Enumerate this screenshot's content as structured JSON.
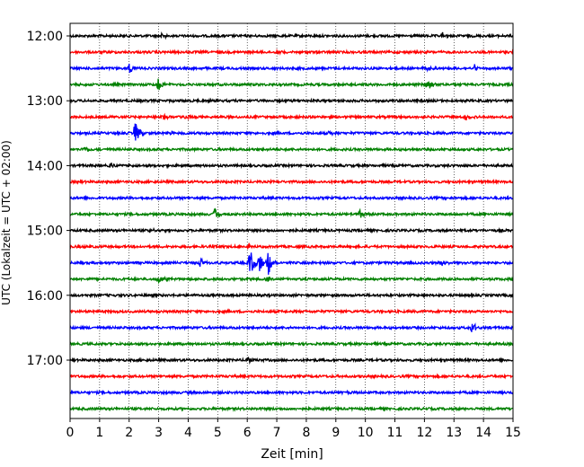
{
  "chart_data": {
    "type": "line",
    "title": "",
    "xlabel": "Zeit  [min]",
    "ylabel": "UTC (Lokalzeit = UTC + 02:00)",
    "xlim": [
      0,
      15
    ],
    "x_ticks": [
      0,
      1,
      2,
      3,
      4,
      5,
      6,
      7,
      8,
      9,
      10,
      11,
      12,
      13,
      14,
      15
    ],
    "y_tick_labels": [
      "12:00",
      "13:00",
      "14:00",
      "15:00",
      "16:00",
      "17:00"
    ],
    "grid": "x-dotted",
    "start_time": "12:00",
    "row_interval_min": 15,
    "color_cycle": [
      "#000000",
      "#ff0000",
      "#0000ff",
      "#008000"
    ],
    "rows": [
      {
        "start": "12:00",
        "color": "#000000",
        "events": [
          {
            "t": 3.1,
            "amp": 0.35
          },
          {
            "t": 12.6,
            "amp": 0.4
          }
        ]
      },
      {
        "start": "12:15",
        "color": "#ff0000",
        "events": [
          {
            "t": 7.0,
            "amp": 0.2
          }
        ]
      },
      {
        "start": "12:30",
        "color": "#0000ff",
        "events": [
          {
            "t": 2.0,
            "amp": 0.7
          },
          {
            "t": 12.0,
            "amp": 0.4
          },
          {
            "t": 13.7,
            "amp": 0.4
          }
        ]
      },
      {
        "start": "12:45",
        "color": "#008000",
        "events": [
          {
            "t": 3.0,
            "amp": 1.0
          },
          {
            "t": 12.1,
            "amp": 0.8
          }
        ]
      },
      {
        "start": "13:00",
        "color": "#000000",
        "events": []
      },
      {
        "start": "13:15",
        "color": "#ff0000",
        "events": [
          {
            "t": 3.1,
            "amp": 0.4
          },
          {
            "t": 3.9,
            "amp": 0.4
          },
          {
            "t": 13.4,
            "amp": 0.4
          }
        ]
      },
      {
        "start": "13:30",
        "color": "#0000ff",
        "events": [
          {
            "t": 2.2,
            "amp": 1.5
          },
          {
            "t": 3.4,
            "amp": 0.3
          },
          {
            "t": 8.8,
            "amp": 0.3
          }
        ]
      },
      {
        "start": "13:45",
        "color": "#008000",
        "events": [
          {
            "t": 0.5,
            "amp": 0.4
          },
          {
            "t": 15.0,
            "amp": 0.3
          }
        ]
      },
      {
        "start": "14:00",
        "color": "#000000",
        "events": [
          {
            "t": 1.4,
            "amp": 0.4
          }
        ]
      },
      {
        "start": "14:15",
        "color": "#ff0000",
        "events": []
      },
      {
        "start": "14:30",
        "color": "#0000ff",
        "events": []
      },
      {
        "start": "14:45",
        "color": "#008000",
        "events": [
          {
            "t": 4.9,
            "amp": 0.9
          },
          {
            "t": 9.8,
            "amp": 0.5
          }
        ]
      },
      {
        "start": "15:00",
        "color": "#000000",
        "events": [
          {
            "t": 2.7,
            "amp": 0.3
          },
          {
            "t": 13.0,
            "amp": 0.2
          }
        ]
      },
      {
        "start": "15:15",
        "color": "#ff0000",
        "events": [
          {
            "t": 4.8,
            "amp": 0.2
          },
          {
            "t": 6.0,
            "amp": 0.2
          }
        ]
      },
      {
        "start": "15:30",
        "color": "#0000ff",
        "events": [
          {
            "t": 4.4,
            "amp": 0.6
          },
          {
            "t": 6.1,
            "amp": 1.8
          },
          {
            "t": 6.4,
            "amp": 1.3
          },
          {
            "t": 6.7,
            "amp": 1.8
          },
          {
            "t": 12.6,
            "amp": 0.4
          }
        ]
      },
      {
        "start": "15:45",
        "color": "#008000",
        "events": [
          {
            "t": 3.0,
            "amp": 0.6
          },
          {
            "t": 6.7,
            "amp": 0.3
          }
        ]
      },
      {
        "start": "16:00",
        "color": "#000000",
        "events": []
      },
      {
        "start": "16:15",
        "color": "#ff0000",
        "events": []
      },
      {
        "start": "16:30",
        "color": "#0000ff",
        "events": [
          {
            "t": 13.6,
            "amp": 0.8
          }
        ]
      },
      {
        "start": "16:45",
        "color": "#008000",
        "events": []
      },
      {
        "start": "17:00",
        "color": "#000000",
        "events": [
          {
            "t": 6.0,
            "amp": 0.4
          }
        ]
      },
      {
        "start": "17:15",
        "color": "#ff0000",
        "events": []
      },
      {
        "start": "17:30",
        "color": "#0000ff",
        "events": [
          {
            "t": 9.2,
            "amp": 0.2
          }
        ]
      },
      {
        "start": "17:45",
        "color": "#008000",
        "events": []
      }
    ]
  }
}
